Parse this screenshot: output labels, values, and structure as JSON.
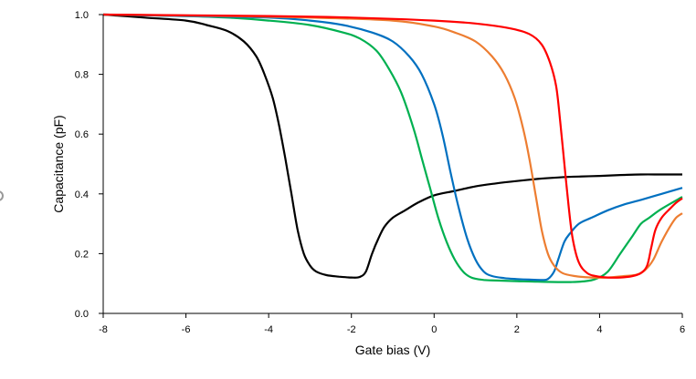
{
  "chart_data": {
    "type": "line",
    "xlabel": "Gate bias (V)",
    "ylabel": "Capacitance (pF)",
    "xlim": [
      -8,
      6
    ],
    "ylim": [
      0,
      1.0
    ],
    "x_ticks": [
      "-8",
      "-6",
      "-4",
      "-2",
      "0",
      "2",
      "4",
      "6"
    ],
    "x_tick_values": [
      -8,
      -6,
      -4,
      -2,
      0,
      2,
      4,
      6
    ],
    "y_ticks": [
      "0.0",
      "0.2",
      "0.4",
      "0.6",
      "0.8",
      "1.0"
    ],
    "y_tick_values": [
      0,
      0.2,
      0.4,
      0.6,
      0.8,
      1.0
    ],
    "grid": false,
    "legend": "none",
    "series": [
      {
        "color": "#000000",
        "x": [
          -8,
          -7,
          -6,
          -5.5,
          -5,
          -4.6,
          -4.3,
          -4.1,
          -3.9,
          -3.75,
          -3.6,
          -3.45,
          -3.3,
          -3.15,
          -3.0,
          -2.85,
          -2.6,
          -2.3,
          -2.0,
          -1.8,
          -1.65,
          -1.5,
          -1.35,
          -1.2,
          -1.0,
          -0.7,
          -0.4,
          0,
          0.5,
          1,
          1.5,
          2,
          2.5,
          3,
          3.5,
          4,
          4.5,
          5,
          5.5,
          6
        ],
        "y": [
          1.0,
          0.99,
          0.98,
          0.965,
          0.945,
          0.91,
          0.86,
          0.8,
          0.72,
          0.63,
          0.52,
          0.4,
          0.28,
          0.2,
          0.16,
          0.14,
          0.128,
          0.123,
          0.12,
          0.122,
          0.14,
          0.2,
          0.25,
          0.29,
          0.32,
          0.345,
          0.37,
          0.395,
          0.41,
          0.425,
          0.435,
          0.443,
          0.45,
          0.455,
          0.458,
          0.46,
          0.463,
          0.465,
          0.465,
          0.465
        ]
      },
      {
        "color": "#00b050",
        "x": [
          -8,
          -6,
          -5,
          -4,
          -3,
          -2.2,
          -1.8,
          -1.4,
          -1.1,
          -0.8,
          -0.5,
          -0.3,
          -0.1,
          0.1,
          0.3,
          0.5,
          0.7,
          0.9,
          1.2,
          1.5,
          2,
          2.5,
          3,
          3.3,
          3.6,
          3.9,
          4.2,
          4.5,
          4.8,
          5.0,
          5.2,
          5.5,
          6
        ],
        "y": [
          1.0,
          0.995,
          0.99,
          0.98,
          0.965,
          0.94,
          0.92,
          0.88,
          0.82,
          0.74,
          0.62,
          0.52,
          0.42,
          0.32,
          0.24,
          0.18,
          0.14,
          0.12,
          0.112,
          0.11,
          0.108,
          0.106,
          0.105,
          0.105,
          0.107,
          0.115,
          0.14,
          0.2,
          0.26,
          0.3,
          0.32,
          0.35,
          0.39
        ]
      },
      {
        "color": "#0070c0",
        "x": [
          -8,
          -6,
          -4,
          -3,
          -2.2,
          -1.5,
          -1.0,
          -0.6,
          -0.3,
          0,
          0.2,
          0.4,
          0.6,
          0.8,
          1.0,
          1.2,
          1.4,
          1.7,
          2,
          2.3,
          2.6,
          2.75,
          2.9,
          3.0,
          3.15,
          3.3,
          3.5,
          3.8,
          4.2,
          4.6,
          5.0,
          5.5,
          6
        ],
        "y": [
          1.0,
          0.995,
          0.99,
          0.98,
          0.965,
          0.94,
          0.91,
          0.86,
          0.8,
          0.7,
          0.6,
          0.47,
          0.35,
          0.25,
          0.18,
          0.14,
          0.125,
          0.118,
          0.115,
          0.113,
          0.112,
          0.115,
          0.14,
          0.18,
          0.24,
          0.27,
          0.3,
          0.32,
          0.345,
          0.365,
          0.38,
          0.4,
          0.42
        ]
      },
      {
        "color": "#ed7d31",
        "x": [
          -8,
          -5,
          -3,
          -1,
          0,
          0.5,
          1.0,
          1.4,
          1.7,
          1.95,
          2.15,
          2.3,
          2.45,
          2.6,
          2.75,
          2.9,
          3.1,
          3.4,
          3.8,
          4.2,
          4.6,
          4.9,
          5.1,
          5.3,
          5.5,
          5.7,
          5.85,
          6
        ],
        "y": [
          1.0,
          0.995,
          0.99,
          0.98,
          0.96,
          0.94,
          0.91,
          0.86,
          0.8,
          0.72,
          0.62,
          0.52,
          0.4,
          0.28,
          0.2,
          0.16,
          0.135,
          0.125,
          0.12,
          0.12,
          0.125,
          0.13,
          0.145,
          0.18,
          0.24,
          0.29,
          0.32,
          0.335
        ]
      },
      {
        "color": "#ff0000",
        "x": [
          -8,
          -4,
          -2,
          0,
          1,
          1.8,
          2.3,
          2.6,
          2.8,
          2.95,
          3.05,
          3.15,
          3.25,
          3.35,
          3.5,
          3.7,
          3.9,
          4.2,
          4.5,
          4.8,
          5.0,
          5.15,
          5.25,
          5.35,
          5.5,
          5.7,
          5.85,
          6
        ],
        "y": [
          1.0,
          0.995,
          0.99,
          0.98,
          0.97,
          0.955,
          0.935,
          0.9,
          0.84,
          0.76,
          0.64,
          0.5,
          0.36,
          0.25,
          0.17,
          0.135,
          0.125,
          0.12,
          0.12,
          0.125,
          0.135,
          0.16,
          0.22,
          0.28,
          0.32,
          0.35,
          0.37,
          0.385
        ]
      }
    ]
  }
}
